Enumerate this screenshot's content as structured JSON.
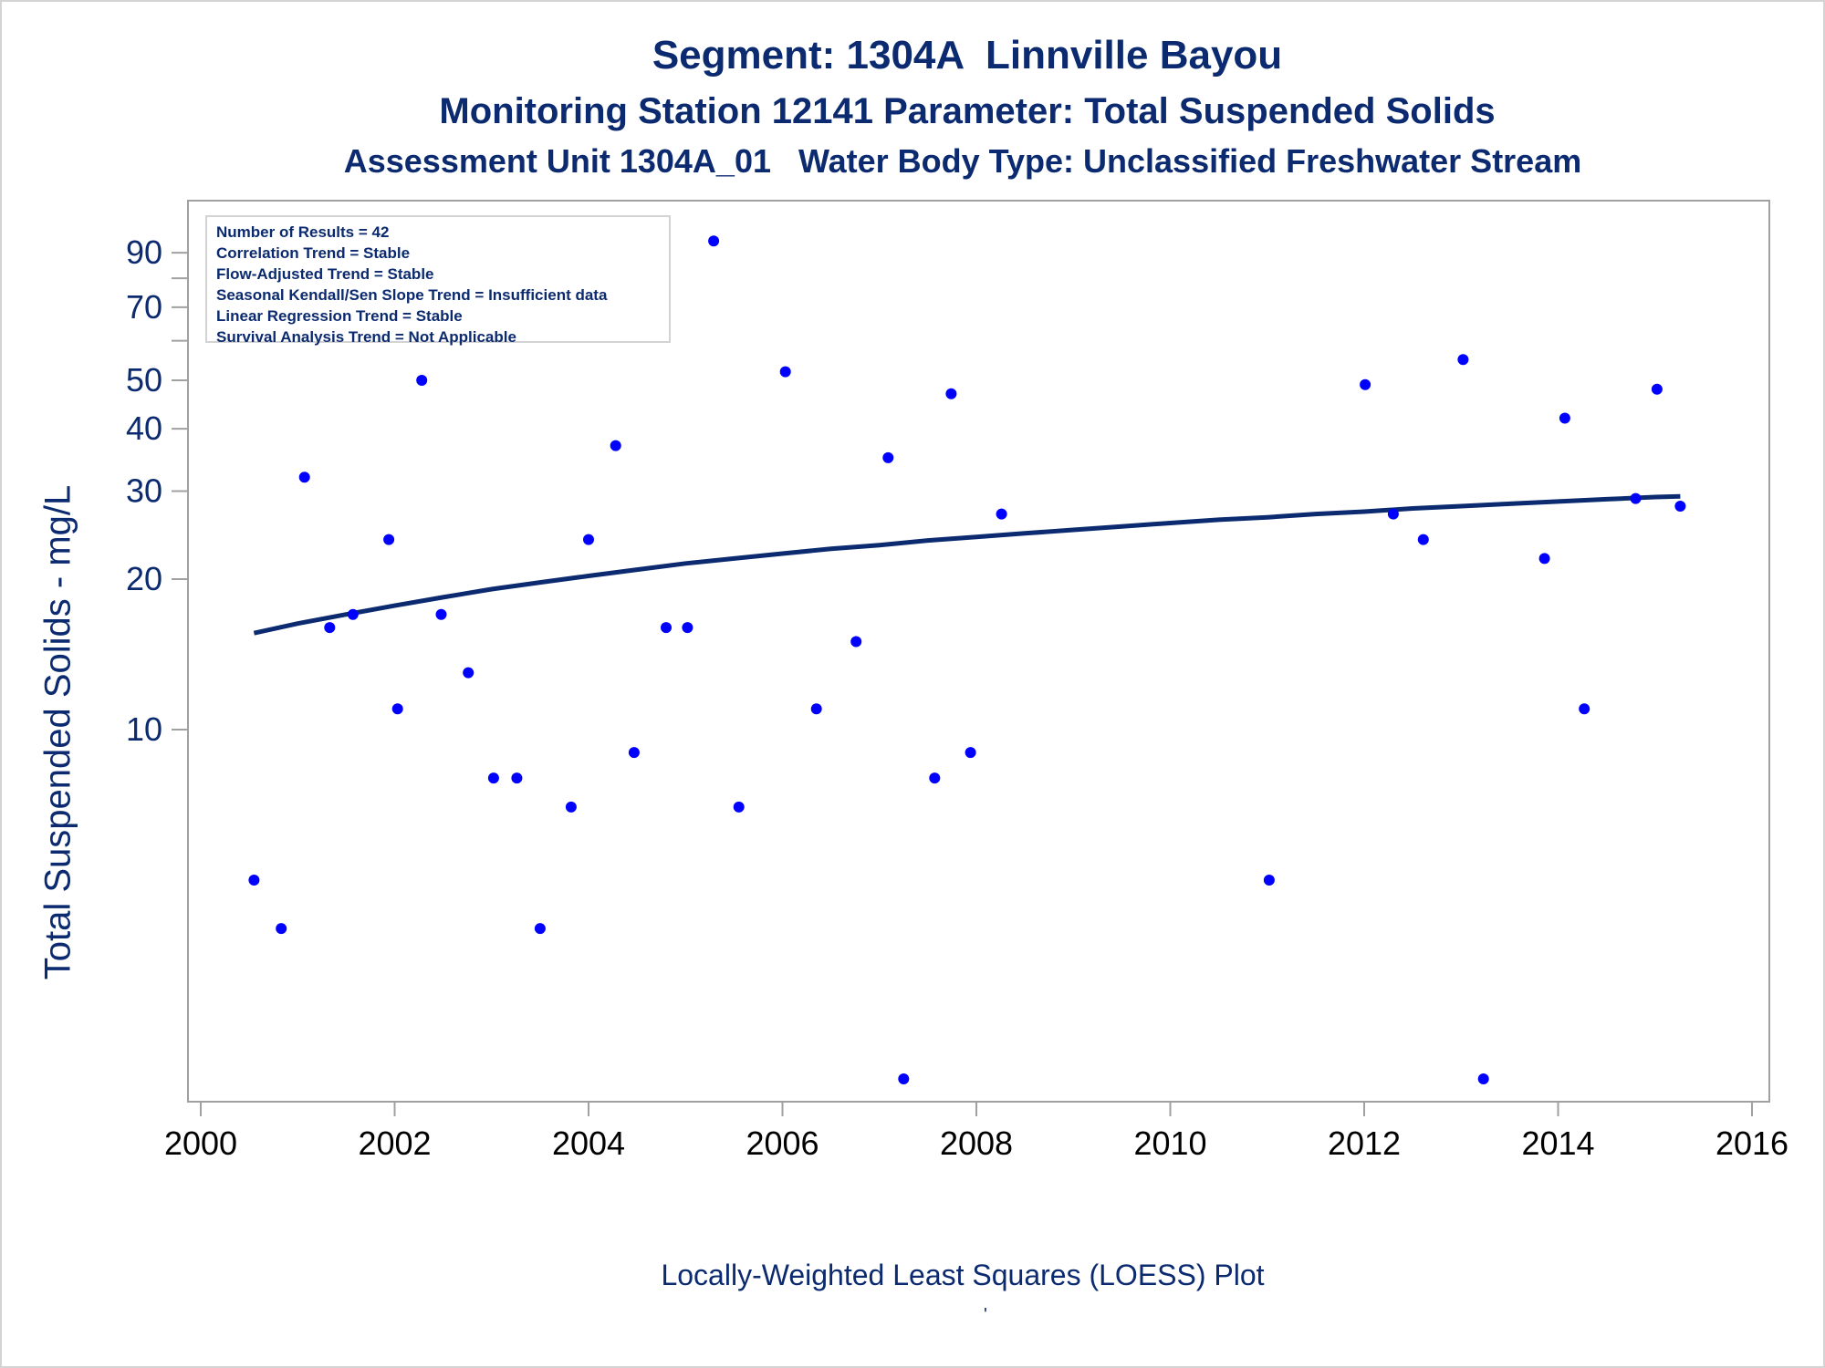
{
  "titles": {
    "line1": "Segment: 1304A  Linnville Bayou",
    "line2": "Monitoring Station 12141 Parameter: Total Suspended Solids",
    "line3": "Assessment Unit 1304A_01   Water Body Type: Unclassified Freshwater Stream"
  },
  "footnote": "Locally-Weighted Least Squares (LOESS) Plot",
  "footnote_mark": "'",
  "stats": [
    "Number of Results = 42",
    "Correlation Trend = Stable",
    "Flow-Adjusted Trend = Stable",
    "Seasonal Kendall/Sen Slope Trend = Insufficient data",
    "Linear Regression Trend = Stable",
    "Survival Analysis Trend = Not Applicable"
  ],
  "colors": {
    "points": "#0000ff",
    "loess_line": "#0b2a6f",
    "text": "#0b2a6f",
    "axis": "#a0a0a0"
  },
  "chart_data": {
    "type": "scatter",
    "title": "Segment: 1304A  Linnville Bayou",
    "ylabel": "Total Suspended Solids - mg/L",
    "xlabel": "",
    "yscale": "log",
    "xlim": [
      2000,
      2016
    ],
    "ylim": [
      2,
      100
    ],
    "xticks": [
      2000,
      2002,
      2004,
      2006,
      2008,
      2010,
      2012,
      2014,
      2016
    ],
    "yticks_labeled": [
      10,
      20,
      30,
      40,
      50,
      70,
      90
    ],
    "yticks_minor": [
      60,
      80
    ],
    "grid": false,
    "legend": "top-left inset",
    "series": [
      {
        "type": "scatter",
        "x": [
          2000.55,
          2000.83,
          2001.07,
          2001.33,
          2001.57,
          2001.94,
          2002.03,
          2002.28,
          2002.48,
          2002.76,
          2003.02,
          2003.26,
          2003.5,
          2003.82,
          2004.0,
          2004.28,
          2004.47,
          2004.8,
          2005.02,
          2005.29,
          2005.55,
          2006.03,
          2006.35,
          2006.76,
          2007.09,
          2007.25,
          2007.74,
          2007.57,
          2007.94,
          2008.26,
          2011.02,
          2012.01,
          2012.3,
          2012.61,
          2013.02,
          2013.23,
          2013.86,
          2014.07,
          2014.27,
          2014.8,
          2015.02,
          2015.26
        ],
        "y": [
          5,
          4,
          32,
          16,
          17,
          24,
          11,
          50,
          17,
          13,
          8,
          8,
          4,
          7,
          24,
          37,
          9,
          16,
          16,
          95,
          7,
          52,
          11,
          15,
          35,
          2,
          47,
          8,
          9,
          27,
          5,
          49,
          27,
          24,
          55,
          2,
          22,
          42,
          11,
          29,
          48,
          28
        ]
      },
      {
        "type": "line",
        "name": "LOESS",
        "x": [
          2000.55,
          2001.0,
          2001.5,
          2002.0,
          2002.5,
          2003.0,
          2003.5,
          2004.0,
          2004.5,
          2005.0,
          2005.5,
          2006.0,
          2006.5,
          2007.0,
          2007.5,
          2008.0,
          2008.5,
          2009.0,
          2009.5,
          2010.0,
          2010.5,
          2011.0,
          2011.5,
          2012.0,
          2012.5,
          2013.0,
          2013.5,
          2014.0,
          2014.5,
          2015.0,
          2015.26
        ],
        "y": [
          15.6,
          16.3,
          17.0,
          17.7,
          18.4,
          19.1,
          19.7,
          20.3,
          20.9,
          21.5,
          22.0,
          22.5,
          23.0,
          23.4,
          23.9,
          24.3,
          24.7,
          25.1,
          25.5,
          25.9,
          26.3,
          26.6,
          27.0,
          27.3,
          27.7,
          28.0,
          28.3,
          28.6,
          28.9,
          29.2,
          29.3
        ]
      }
    ]
  }
}
